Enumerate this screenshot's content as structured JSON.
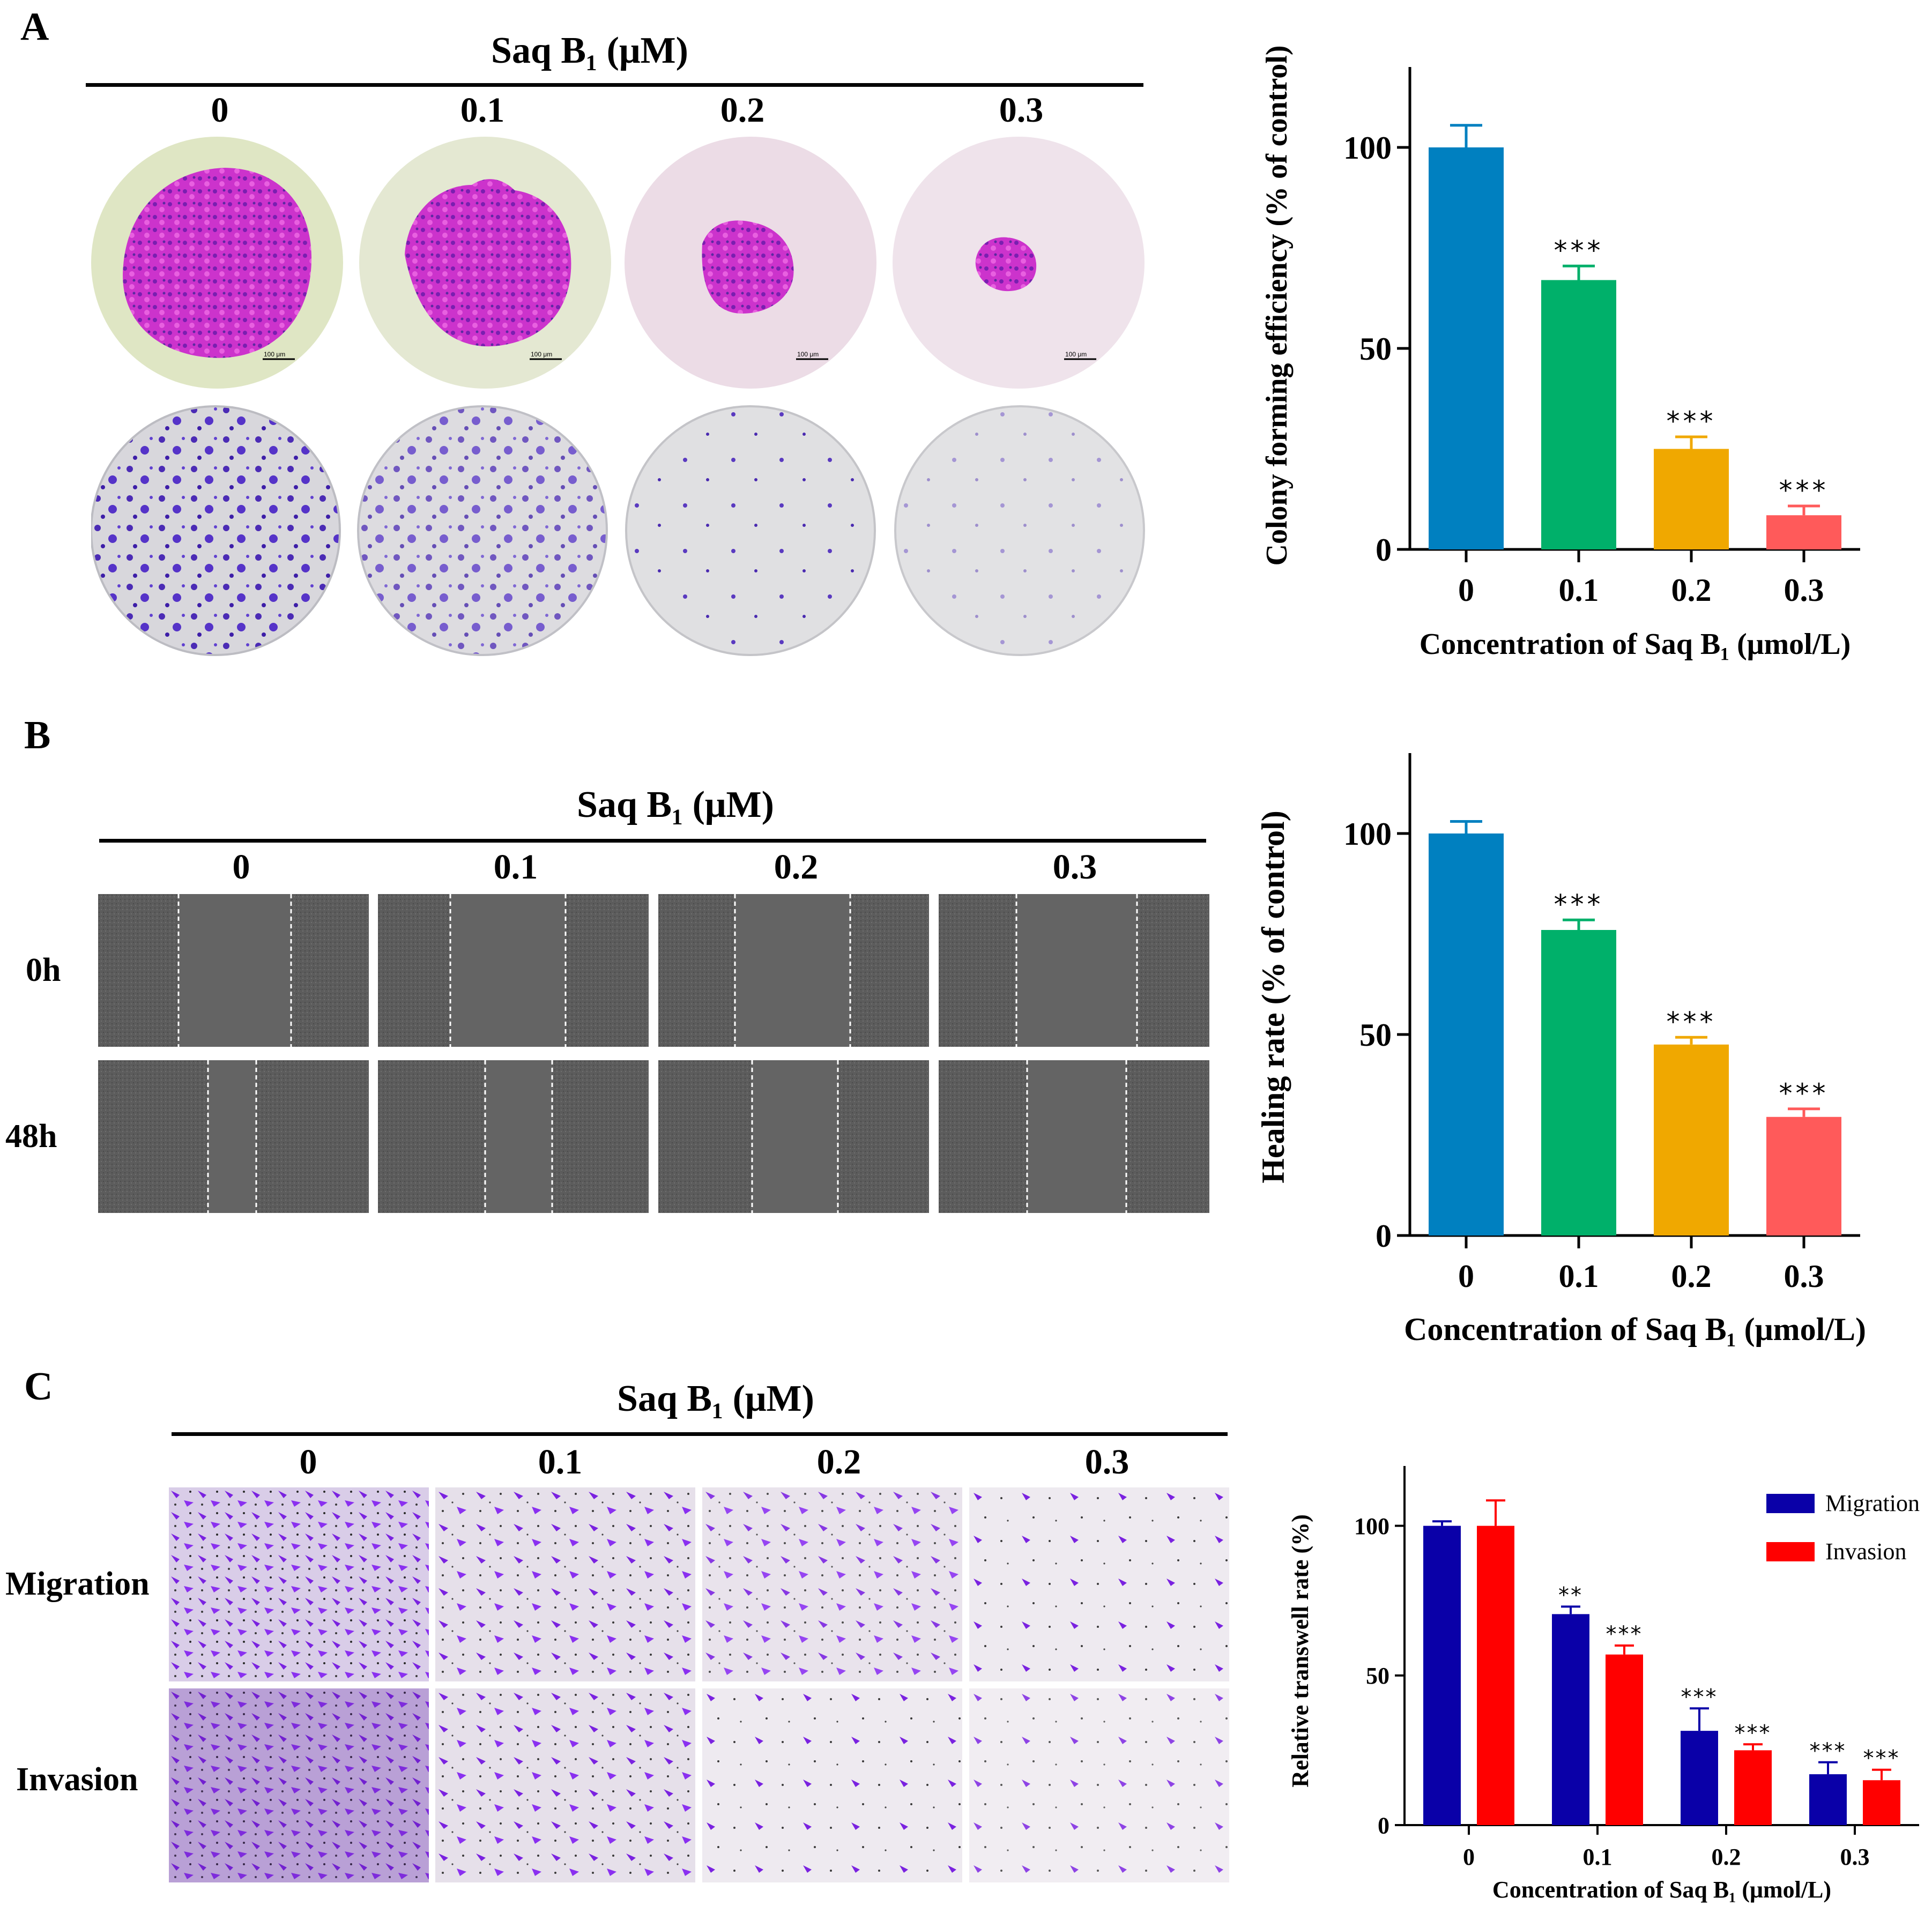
{
  "figure": {
    "panels": [
      {
        "letter": "A",
        "title": "Saq B₁ (μM)",
        "concentrations": [
          "0",
          "0.1",
          "0.2",
          "0.3"
        ],
        "row_labels": [],
        "scale_bars": [
          "100 μm",
          "100 μm",
          "100 μm",
          "100 μm"
        ]
      },
      {
        "letter": "B",
        "title": "Saq B₁ (μM)",
        "concentrations": [
          "0",
          "0.1",
          "0.2",
          "0.3"
        ],
        "row_labels": [
          "0h",
          "48h"
        ]
      },
      {
        "letter": "C",
        "title": "Saq B₁ (μM)",
        "concentrations": [
          "0",
          "0.1",
          "0.2",
          "0.3"
        ],
        "row_labels": [
          "Migration",
          "Invasion"
        ]
      }
    ]
  },
  "chart_data": [
    {
      "type": "bar",
      "categories": [
        "0",
        "0.1",
        "0.2",
        "0.3"
      ],
      "series": [
        {
          "name": "Colony forming efficiency",
          "values": [
            100,
            67,
            25,
            8.5
          ],
          "errors": [
            5.5,
            3.5,
            3,
            2.3
          ]
        }
      ],
      "colors": [
        "#0080c0",
        "#00b06a",
        "#f0a800",
        "#ff5a5a"
      ],
      "significance": [
        "",
        "***",
        "***",
        "***"
      ],
      "ylabel": "Colony forming efficiency (% of control)",
      "xlabel": "Concentration of Saq B₁ (μmol/L)",
      "ylim": [
        0,
        120
      ],
      "yticks": [
        0,
        50,
        100
      ]
    },
    {
      "type": "bar",
      "categories": [
        "0",
        "0.1",
        "0.2",
        "0.3"
      ],
      "series": [
        {
          "name": "Healing rate",
          "values": [
            100,
            76,
            47.5,
            29.5
          ],
          "errors": [
            3,
            2.5,
            1.8,
            2
          ]
        }
      ],
      "colors": [
        "#0080c0",
        "#00b06a",
        "#f0a800",
        "#ff5a5a"
      ],
      "significance": [
        "",
        "***",
        "***",
        "***"
      ],
      "ylabel": "Healing rate (% of control)",
      "xlabel": "Concentration of Saq B₁ (μmol/L)",
      "ylim": [
        0,
        120
      ],
      "yticks": [
        0,
        50,
        100
      ]
    },
    {
      "type": "bar",
      "categories": [
        "0",
        "0.1",
        "0.2",
        "0.3"
      ],
      "series": [
        {
          "name": "Migration",
          "values": [
            100,
            70.5,
            31.5,
            17
          ],
          "errors": [
            1.5,
            2.5,
            7.5,
            4
          ],
          "color": "#0a00a8",
          "significance": [
            "",
            "**",
            "***",
            "***"
          ]
        },
        {
          "name": "Invasion",
          "values": [
            100,
            57,
            25,
            15
          ],
          "errors": [
            8.5,
            3,
            2,
            3.5
          ],
          "color": "#ff0000",
          "significance": [
            "",
            "***",
            "***",
            "***"
          ]
        }
      ],
      "ylabel": "Relative transwell rate (%)",
      "xlabel": "Concentration of Saq B₁ (μmol/L)",
      "ylim": [
        0,
        120
      ],
      "yticks": [
        0,
        50,
        100
      ],
      "legend": "top-right"
    }
  ]
}
